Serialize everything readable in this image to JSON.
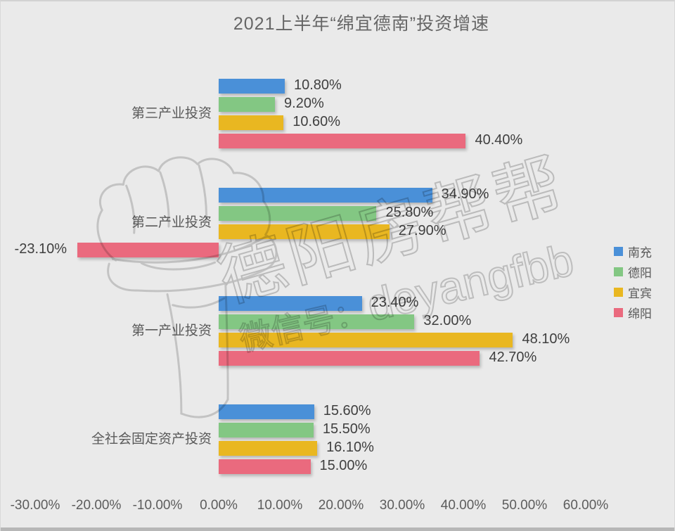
{
  "chart_data": {
    "type": "bar",
    "orientation": "horizontal",
    "title": "2021上半年“绵宜德南”投资增速",
    "categories": [
      "第三产业投资",
      "第二产业投资",
      "第一产业投资",
      "全社会固定资产投资"
    ],
    "series": [
      {
        "name": "南充",
        "color": "#4a90d8",
        "values": [
          10.8,
          34.9,
          23.4,
          15.6
        ],
        "labels": [
          "10.80%",
          "34.90%",
          "23.40%",
          "15.60%"
        ]
      },
      {
        "name": "德阳",
        "color": "#83c783",
        "values": [
          9.2,
          25.8,
          32.0,
          15.5
        ],
        "labels": [
          "9.20%",
          "25.80%",
          "32.00%",
          "15.50%"
        ]
      },
      {
        "name": "宜宾",
        "color": "#e9b721",
        "values": [
          10.6,
          27.9,
          48.1,
          16.1
        ],
        "labels": [
          "10.60%",
          "27.90%",
          "48.10%",
          "16.10%"
        ]
      },
      {
        "name": "绵阳",
        "color": "#ea6a7e",
        "values": [
          40.4,
          -23.1,
          42.7,
          15.0
        ],
        "labels": [
          "40.40%",
          "-23.10%",
          "42.70%",
          "15.00%"
        ]
      }
    ],
    "x_ticks": [
      "-30.00%",
      "-20.00%",
      "-10.00%",
      "0.00%",
      "10.00%",
      "20.00%",
      "30.00%",
      "40.00%",
      "50.00%",
      "60.00%"
    ],
    "xlim": [
      -30,
      60
    ],
    "xlabel": "",
    "ylabel": "",
    "grid": false,
    "legend_position": "right",
    "background_color": "#eaeaea",
    "data_label_color": "#3f3f3f"
  },
  "watermark": {
    "brand_cn": "德阳房帮帮",
    "wechat_label": "微信号：",
    "brand_en": "deyangfbb",
    "fist_icon": "raised-fist-sketch"
  }
}
